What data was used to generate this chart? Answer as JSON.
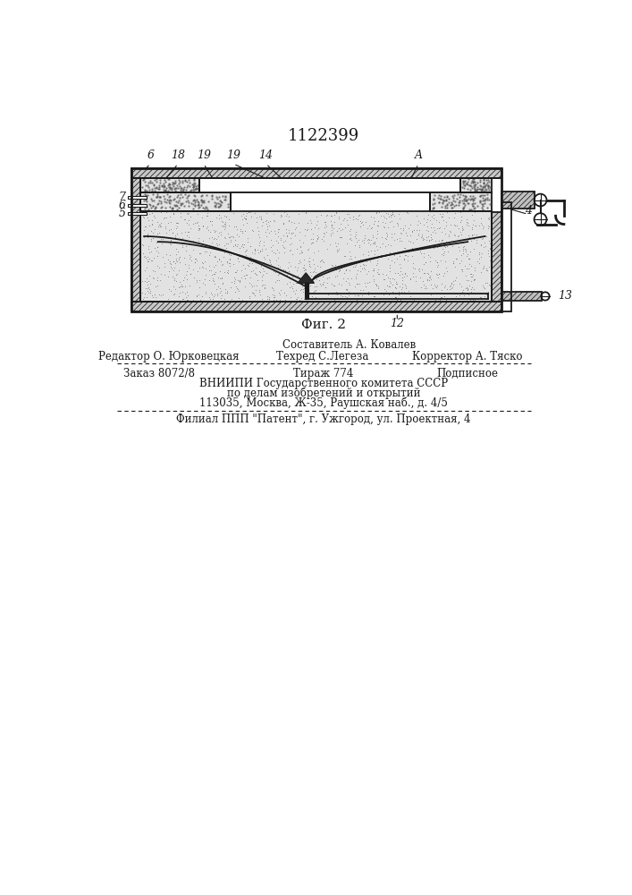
{
  "title": "1122399",
  "fig_label": "Фиг. 2",
  "bg_color": "#ffffff",
  "line_color": "#1a1a1a",
  "sand_color": "#e8e8e8",
  "footer_line0": "Составитель А. Ковалев",
  "footer_line1a": "Редактор О. Юрковецкая",
  "footer_line1b": "Техред С.Легеза",
  "footer_line1c": "Корректор А. Тяско",
  "footer_line2a": "Заказ 8072/8",
  "footer_line2b": "Тираж 774",
  "footer_line2c": "Подписное",
  "footer_line3": "ВНИИПИ Государственного комитета СССР",
  "footer_line4": "по делам изобретений и открытий",
  "footer_line5": "113035, Москва, Ж-35, Раушская наб., д. 4/5",
  "footer_line6": "Филиал ППП \"Патент\", г. Ужгород, ул. Проектная, 4"
}
